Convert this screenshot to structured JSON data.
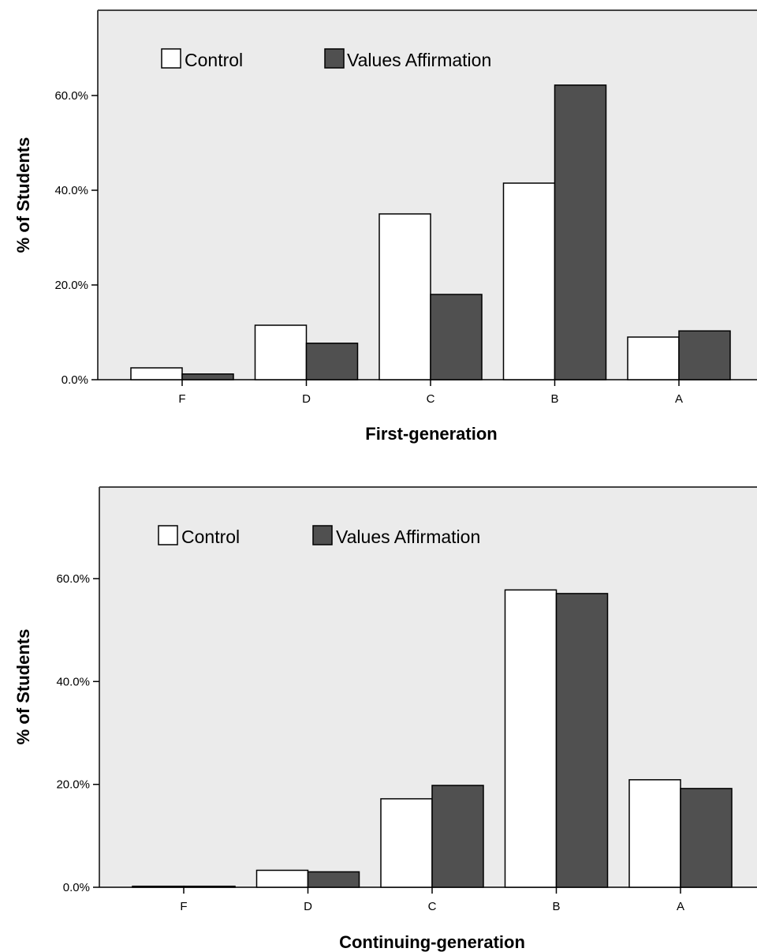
{
  "chart_data": [
    {
      "type": "bar",
      "categories": [
        "F",
        "D",
        "C",
        "B",
        "A"
      ],
      "series": [
        {
          "name": "Control",
          "values": [
            2.5,
            11.5,
            35.0,
            41.5,
            9.0
          ]
        },
        {
          "name": "Values Affirmation",
          "values": [
            1.2,
            7.7,
            18.0,
            62.2,
            10.3
          ]
        }
      ],
      "xlabel": "First-generation",
      "ylabel": "% of Students",
      "ylim": [
        0,
        75
      ],
      "yticks": [
        "0.0%",
        "20.0%",
        "40.0%",
        "60.0%"
      ],
      "legend_position": "top-left",
      "colors": {
        "Control": "#ffffff",
        "Values Affirmation": "#505050",
        "plot_bg": "#ebebeb"
      }
    },
    {
      "type": "bar",
      "categories": [
        "F",
        "D",
        "C",
        "B",
        "A"
      ],
      "series": [
        {
          "name": "Control",
          "values": [
            0.2,
            3.3,
            17.2,
            57.8,
            20.9
          ]
        },
        {
          "name": "Values Affirmation",
          "values": [
            0.2,
            3.0,
            19.8,
            57.1,
            19.2
          ]
        }
      ],
      "xlabel": "Continuing-generation",
      "ylabel": "% of Students",
      "ylim": [
        0,
        78
      ],
      "yticks": [
        "0.0%",
        "20.0%",
        "40.0%",
        "60.0%"
      ],
      "legend_position": "top-left",
      "colors": {
        "Control": "#ffffff",
        "Values Affirmation": "#505050",
        "plot_bg": "#ebebeb"
      }
    }
  ]
}
